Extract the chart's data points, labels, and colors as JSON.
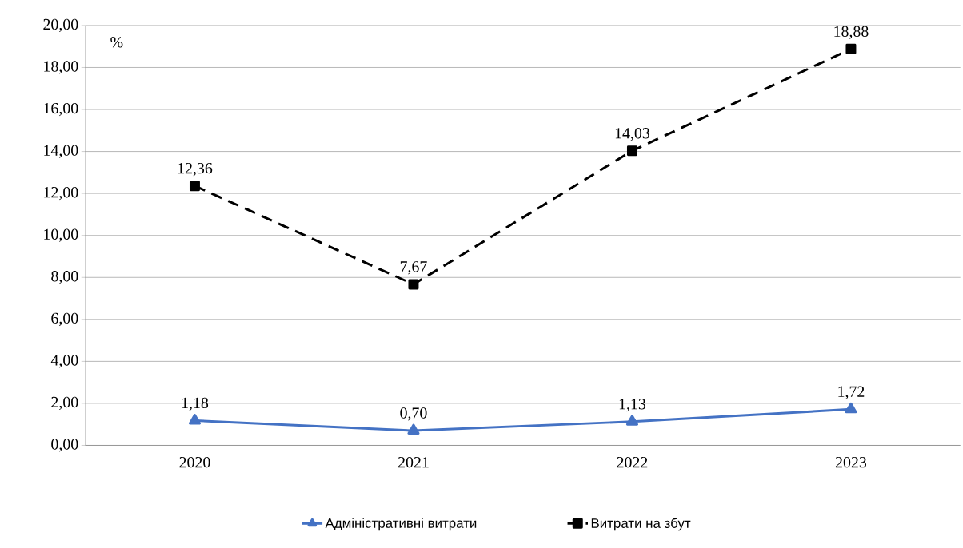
{
  "chart_data": {
    "type": "line",
    "categories": [
      "2020",
      "2021",
      "2022",
      "2023"
    ],
    "series": [
      {
        "name": "Адміністративні  витрати",
        "color": "#4472c4",
        "marker": "triangle",
        "line_style": "solid",
        "values": [
          1.18,
          0.7,
          1.13,
          1.72
        ],
        "value_labels": [
          "1,18",
          "0,70",
          "1,13",
          "1,72"
        ]
      },
      {
        "name": "Витрати на збут",
        "color": "#000000",
        "marker": "square",
        "line_style": "dashed",
        "values": [
          12.36,
          7.67,
          14.03,
          18.88
        ],
        "value_labels": [
          "12,36",
          "7,67",
          "14,03",
          "18,88"
        ]
      }
    ],
    "ylim": [
      0,
      20
    ],
    "yticks": [
      {
        "value": 0,
        "label": "0,00"
      },
      {
        "value": 2,
        "label": "2,00"
      },
      {
        "value": 4,
        "label": "4,00"
      },
      {
        "value": 6,
        "label": "6,00"
      },
      {
        "value": 8,
        "label": "8,00"
      },
      {
        "value": 10,
        "label": "10,00"
      },
      {
        "value": 12,
        "label": "12,00"
      },
      {
        "value": 14,
        "label": "14,00"
      },
      {
        "value": 16,
        "label": "16,00"
      },
      {
        "value": 18,
        "label": "18,00"
      },
      {
        "value": 20,
        "label": "20,00"
      }
    ],
    "annotations": [
      "%"
    ],
    "grid": "y",
    "legend": "bottom"
  }
}
